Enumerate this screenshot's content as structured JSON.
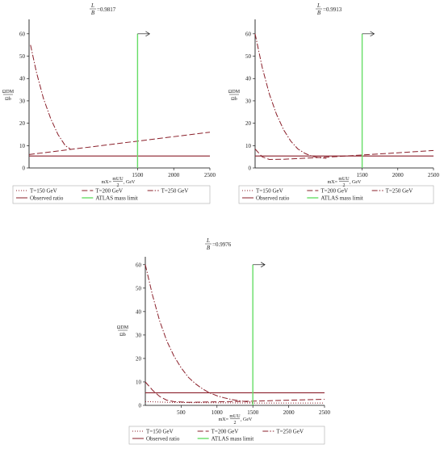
{
  "colors": {
    "series": "#8a1f2a",
    "observed": "#8a1f2a",
    "atlas": "#66dd66",
    "axis": "#000000",
    "legend_border": "#aaaaaa"
  },
  "chart_data": [
    {
      "type": "line",
      "title_lhs_num": "L",
      "title_lhs_den": "B",
      "title_rhs": "=0.9817",
      "ylabel_num": "ΩDM",
      "ylabel_den": "Ωb",
      "xlabel_lhs": "mX=",
      "xlabel_frac_num": "mUU",
      "xlabel_frac_den": "2",
      "xlabel_unit": ", GeV",
      "xlim": [
        0,
        2500
      ],
      "ylim": [
        0,
        65
      ],
      "xticks": [
        "1500",
        "2000",
        "2500"
      ],
      "yticks": [
        "0",
        "10",
        "20",
        "30",
        "40",
        "50",
        "60"
      ],
      "series": [
        {
          "name": "T=150 GeV",
          "style": "dotted",
          "x": [],
          "y": []
        },
        {
          "name": "T=200 GeV",
          "style": "dashed",
          "x": [
            0,
            2500
          ],
          "y": [
            6.0,
            16.0
          ]
        },
        {
          "name": "T=250 GeV",
          "style": "dashdot",
          "x": [
            20,
            100,
            200,
            300,
            400,
            500,
            570
          ],
          "y": [
            55,
            43,
            31,
            22,
            15,
            10,
            8.5
          ]
        }
      ],
      "observed_ratio": {
        "name": "Observed ratio",
        "value": 5.36
      },
      "atlas_limit": {
        "name": "ATLAS mass limit",
        "x": 1500,
        "y_top": 60
      },
      "legend": [
        "T=150 GeV",
        "T=200 GeV",
        "T=250 GeV",
        "Observed ratio",
        "ATLAS mass limit"
      ],
      "legend_position": "bottom",
      "grid": false
    },
    {
      "type": "line",
      "title_lhs_num": "L",
      "title_lhs_den": "B",
      "title_rhs": "=0.9913",
      "ylabel_num": "ΩDM",
      "ylabel_den": "Ωb",
      "xlabel_lhs": "mX=",
      "xlabel_frac_num": "mUU",
      "xlabel_frac_den": "2",
      "xlabel_unit": ", GeV",
      "xlim": [
        0,
        2500
      ],
      "ylim": [
        0,
        65
      ],
      "xticks": [
        "1500",
        "2000",
        "2500"
      ],
      "yticks": [
        "0",
        "10",
        "20",
        "30",
        "40",
        "50",
        "60"
      ],
      "series": [
        {
          "name": "T=150 GeV",
          "style": "dotted",
          "x": [],
          "y": []
        },
        {
          "name": "T=200 GeV",
          "style": "dashed",
          "x": [
            0,
            100,
            200,
            400,
            800,
            1200,
            1600,
            2000,
            2500
          ],
          "y": [
            8.5,
            5.0,
            3.8,
            3.9,
            4.5,
            5.2,
            6.0,
            6.8,
            7.8
          ]
        },
        {
          "name": "T=250 GeV",
          "style": "dashdot",
          "x": [
            0,
            100,
            200,
            300,
            400,
            500,
            600,
            700,
            800,
            900,
            1000
          ],
          "y": [
            60,
            45,
            33,
            24,
            17,
            12,
            8.5,
            6.5,
            5.2,
            4.6,
            4.3
          ]
        }
      ],
      "observed_ratio": {
        "name": "Observed ratio",
        "value": 5.36
      },
      "atlas_limit": {
        "name": "ATLAS mass limit",
        "x": 1500,
        "y_top": 60
      },
      "legend": [
        "T=150 GeV",
        "T=200 GeV",
        "T=250 GeV",
        "Observed ratio",
        "ATLAS mass limit"
      ],
      "legend_position": "bottom",
      "grid": false
    },
    {
      "type": "line",
      "title_lhs_num": "L",
      "title_lhs_den": "B",
      "title_rhs": "=0.9976",
      "ylabel_num": "ΩDM",
      "ylabel_den": "Ωb",
      "xlabel_lhs": "mX=",
      "xlabel_frac_num": "mUU",
      "xlabel_frac_den": "2",
      "xlabel_unit": ", GeV",
      "xlim": [
        0,
        2500
      ],
      "ylim": [
        0,
        62
      ],
      "xticks": [
        "500",
        "1000",
        "1500",
        "2000",
        "2500"
      ],
      "yticks": [
        "0",
        "10",
        "20",
        "30",
        "40",
        "50",
        "60"
      ],
      "series": [
        {
          "name": "T=150 GeV",
          "style": "dotted",
          "x": [
            0,
            100,
            200,
            300,
            500,
            1000,
            1500,
            2000,
            2500
          ],
          "y": [
            1.6,
            1.5,
            1.4,
            1.3,
            1.2,
            1.1,
            1.0,
            1.0,
            1.0
          ]
        },
        {
          "name": "T=200 GeV",
          "style": "dashed",
          "x": [
            0,
            100,
            200,
            300,
            400,
            600,
            800,
            1000,
            1500,
            2000,
            2500
          ],
          "y": [
            10,
            6.5,
            3.8,
            2.2,
            1.6,
            1.3,
            1.4,
            1.5,
            1.8,
            2.2,
            2.6
          ]
        },
        {
          "name": "T=250 GeV",
          "style": "dashdot",
          "x": [
            0,
            100,
            200,
            300,
            400,
            500,
            600,
            700,
            800,
            900,
            1000,
            1100,
            1200,
            1300,
            1400,
            1500
          ],
          "y": [
            60,
            47,
            36,
            27.5,
            21,
            16,
            12,
            9.2,
            7,
            5.3,
            4.1,
            3.2,
            2.5,
            2.0,
            1.6,
            1.3
          ]
        }
      ],
      "observed_ratio": {
        "name": "Observed ratio",
        "value": 5.36
      },
      "atlas_limit": {
        "name": "ATLAS mass limit",
        "x": 1500,
        "y_top": 60
      },
      "legend": [
        "T=150 GeV",
        "T=200 GeV",
        "T=250 GeV",
        "Observed ratio",
        "ATLAS mass limit"
      ],
      "legend_position": "bottom",
      "grid": false
    }
  ]
}
